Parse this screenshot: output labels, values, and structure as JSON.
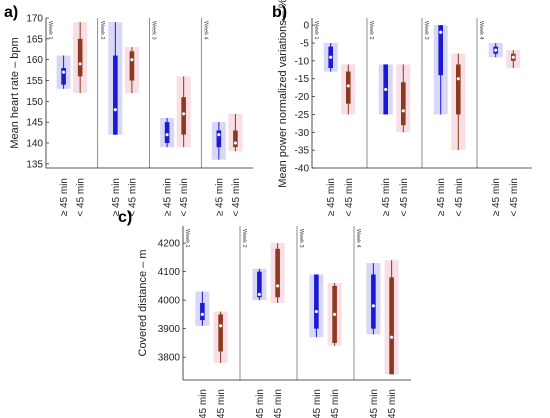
{
  "chart_data": [
    {
      "panel": "a)",
      "type": "box",
      "ylabel": "Mean heart rate – bpm",
      "ylim": [
        134,
        170
      ],
      "yticks": [
        135,
        140,
        145,
        150,
        155,
        160,
        165,
        170
      ],
      "weeks": [
        "Week 1",
        "Week 2",
        "Week 3",
        "Week 4"
      ],
      "categories": [
        "≥ 45 min",
        "< 45 min"
      ],
      "boxes": [
        {
          "week": 1,
          "group": "≥ 45 min",
          "q1": 154,
          "median": 157,
          "q3": 158,
          "whisker_low": 153,
          "whisker_high": 161
        },
        {
          "week": 1,
          "group": "< 45 min",
          "q1": 156,
          "median": 159,
          "q3": 165,
          "whisker_low": 152,
          "whisker_high": 169
        },
        {
          "week": 2,
          "group": "≥ 45 min",
          "q1": 142,
          "median": 148,
          "q3": 161,
          "whisker_low": 142,
          "whisker_high": 169
        },
        {
          "week": 2,
          "group": "< 45 min",
          "q1": 155,
          "median": 160,
          "q3": 162,
          "whisker_low": 152,
          "whisker_high": 163
        },
        {
          "week": 3,
          "group": "≥ 45 min",
          "q1": 140,
          "median": 142,
          "q3": 145,
          "whisker_low": 139,
          "whisker_high": 146
        },
        {
          "week": 3,
          "group": "< 45 min",
          "q1": 142,
          "median": 147,
          "q3": 151,
          "whisker_low": 139,
          "whisker_high": 156
        },
        {
          "week": 4,
          "group": "≥ 45 min",
          "q1": 139,
          "median": 142,
          "q3": 143,
          "whisker_low": 136,
          "whisker_high": 145
        },
        {
          "week": 4,
          "group": "< 45 min",
          "q1": 139,
          "median": 140,
          "q3": 143,
          "whisker_low": 138,
          "whisker_high": 147
        }
      ]
    },
    {
      "panel": "b)",
      "type": "box",
      "ylabel": "Mean power normalized variations – %",
      "ylim": [
        -40,
        2
      ],
      "yticks": [
        0,
        -5,
        -10,
        -15,
        -20,
        -25,
        -30,
        -35,
        -40
      ],
      "weeks": [
        "Week 1",
        "Week 2",
        "Week 3",
        "Week 4"
      ],
      "categories": [
        "≥ 45 min",
        "< 45 min"
      ],
      "boxes": [
        {
          "week": 1,
          "group": "≥ 45 min",
          "q1": -12,
          "median": -9,
          "q3": -6,
          "whisker_low": -13,
          "whisker_high": -5
        },
        {
          "week": 1,
          "group": "< 45 min",
          "q1": -22,
          "median": -17,
          "q3": -13,
          "whisker_low": -25,
          "whisker_high": -11
        },
        {
          "week": 2,
          "group": "≥ 45 min",
          "q1": -25,
          "median": -18,
          "q3": -11,
          "whisker_low": -25,
          "whisker_high": -11
        },
        {
          "week": 2,
          "group": "< 45 min",
          "q1": -28,
          "median": -24,
          "q3": -16,
          "whisker_low": -30,
          "whisker_high": -11
        },
        {
          "week": 3,
          "group": "≥ 45 min",
          "q1": -14,
          "median": -2,
          "q3": 0,
          "whisker_low": -25,
          "whisker_high": 0
        },
        {
          "week": 3,
          "group": "< 45 min",
          "q1": -25,
          "median": -15,
          "q3": -11,
          "whisker_low": -35,
          "whisker_high": -8
        },
        {
          "week": 4,
          "group": "≥ 45 min",
          "q1": -8,
          "median": -7,
          "q3": -6,
          "whisker_low": -9,
          "whisker_high": -5
        },
        {
          "week": 4,
          "group": "< 45 min",
          "q1": -10,
          "median": -9,
          "q3": -8,
          "whisker_low": -12,
          "whisker_high": -7
        }
      ]
    },
    {
      "panel": "c)",
      "type": "box",
      "ylabel": "Covered distance – m",
      "ylim": [
        3720,
        4260
      ],
      "yticks": [
        3800,
        3900,
        4000,
        4100,
        4200
      ],
      "weeks": [
        "Week 1",
        "Week 2",
        "Week 3",
        "Week 4"
      ],
      "categories": [
        "≥ 45 min",
        "< 45 min"
      ],
      "boxes": [
        {
          "week": 1,
          "group": "≥ 45 min",
          "q1": 3930,
          "median": 3950,
          "q3": 3990,
          "whisker_low": 3910,
          "whisker_high": 4030
        },
        {
          "week": 1,
          "group": "< 45 min",
          "q1": 3820,
          "median": 3910,
          "q3": 3950,
          "whisker_low": 3780,
          "whisker_high": 3960
        },
        {
          "week": 2,
          "group": "≥ 45 min",
          "q1": 4010,
          "median": 4020,
          "q3": 4100,
          "whisker_low": 4000,
          "whisker_high": 4110
        },
        {
          "week": 2,
          "group": "< 45 min",
          "q1": 4010,
          "median": 4050,
          "q3": 4180,
          "whisker_low": 3990,
          "whisker_high": 4200
        },
        {
          "week": 3,
          "group": "≥ 45 min",
          "q1": 3900,
          "median": 3960,
          "q3": 4090,
          "whisker_low": 3870,
          "whisker_high": 4090
        },
        {
          "week": 3,
          "group": "< 45 min",
          "q1": 3850,
          "median": 3950,
          "q3": 4050,
          "whisker_low": 3840,
          "whisker_high": 4060
        },
        {
          "week": 4,
          "group": "≥ 45 min",
          "q1": 3900,
          "median": 3980,
          "q3": 4090,
          "whisker_low": 3880,
          "whisker_high": 4130
        },
        {
          "week": 4,
          "group": "< 45 min",
          "q1": 3740,
          "median": 3870,
          "q3": 4080,
          "whisker_low": 3740,
          "whisker_high": 4140
        }
      ]
    }
  ],
  "colors": {
    "group_ge45_box": "#1a1ad6",
    "group_ge45_halo": "#b8b8ee",
    "group_lt45_box": "#8b3a1e",
    "group_lt45_halo": "#f2c2d0",
    "median_marker": "#ffffff"
  }
}
